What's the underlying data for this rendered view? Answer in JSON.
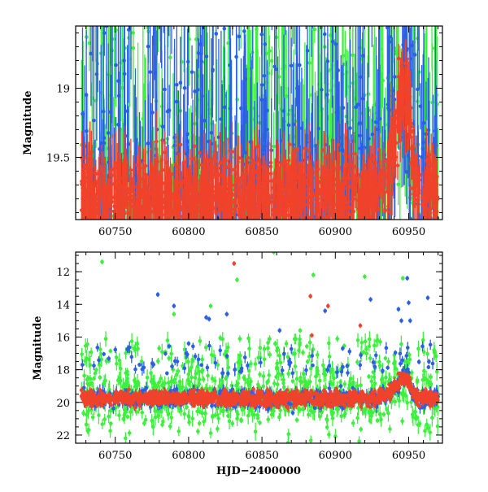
{
  "colors": {
    "green": "#3ef03e",
    "blue": "#2b5fe6",
    "red": "#f0432b",
    "axis": "#000000"
  },
  "chart_data": [
    {
      "type": "scatter",
      "id": "top",
      "title": "",
      "xlabel": "",
      "ylabel": "Magnitude",
      "xlim": [
        60723,
        60973
      ],
      "ylim": [
        19.95,
        18.55
      ],
      "y_inverted": true,
      "xticks": [
        60750,
        60800,
        60850,
        60900,
        60950
      ],
      "xtick_labels": [
        "60750",
        "60800",
        "60850",
        "60900",
        "60950"
      ],
      "yticks": [
        19,
        19.5
      ],
      "ytick_labels": [
        "19",
        "19.5"
      ],
      "series": [
        {
          "name": "green",
          "color_key": "green"
        },
        {
          "name": "blue",
          "color_key": "blue"
        },
        {
          "name": "red",
          "color_key": "red"
        }
      ],
      "baseline_mag": 19.78,
      "flare": {
        "peak_x": 60950,
        "peak_mag": 19.0
      }
    },
    {
      "type": "scatter",
      "id": "bottom",
      "title": "",
      "xlabel": "HJD−2400000",
      "ylabel": "Magnitude",
      "xlim": [
        60723,
        60973
      ],
      "ylim": [
        22.5,
        10.8
      ],
      "y_inverted": true,
      "xticks": [
        60750,
        60800,
        60850,
        60900,
        60950
      ],
      "xtick_labels": [
        "60750",
        "60800",
        "60850",
        "60900",
        "60950"
      ],
      "yticks": [
        12,
        14,
        16,
        18,
        20,
        22
      ],
      "ytick_labels": [
        "12",
        "14",
        "16",
        "18",
        "20",
        "22"
      ],
      "series": [
        {
          "name": "green",
          "color_key": "green"
        },
        {
          "name": "blue",
          "color_key": "blue"
        },
        {
          "name": "red",
          "color_key": "red"
        }
      ],
      "baseline_mag": 19.75,
      "outliers": {
        "green": [
          [
            60741,
            11.4
          ],
          [
            60858,
            10.8
          ],
          [
            60833,
            12.5
          ],
          [
            60885,
            12.2
          ],
          [
            60920,
            12.3
          ],
          [
            60946,
            12.4
          ],
          [
            60790,
            14.6
          ],
          [
            60815,
            14.1
          ],
          [
            60876,
            15.6
          ]
        ],
        "blue": [
          [
            60779,
            13.4
          ],
          [
            60790,
            14.1
          ],
          [
            60812,
            14.8
          ],
          [
            60814,
            14.9
          ],
          [
            60826,
            14.6
          ],
          [
            60893,
            14.4
          ],
          [
            60924,
            13.7
          ],
          [
            60943,
            14.3
          ],
          [
            60945,
            15.0
          ],
          [
            60949,
            12.4
          ],
          [
            60950,
            13.9
          ],
          [
            60951,
            15.0
          ],
          [
            60963,
            13.6
          ],
          [
            60800,
            16.4
          ],
          [
            60862,
            15.6
          ],
          [
            60905,
            16.7
          ]
        ],
        "red": [
          [
            60831,
            11.5
          ],
          [
            60883,
            13.5
          ],
          [
            60895,
            14.1
          ],
          [
            60917,
            15.3
          ],
          [
            60884,
            15.9
          ]
        ]
      }
    }
  ]
}
